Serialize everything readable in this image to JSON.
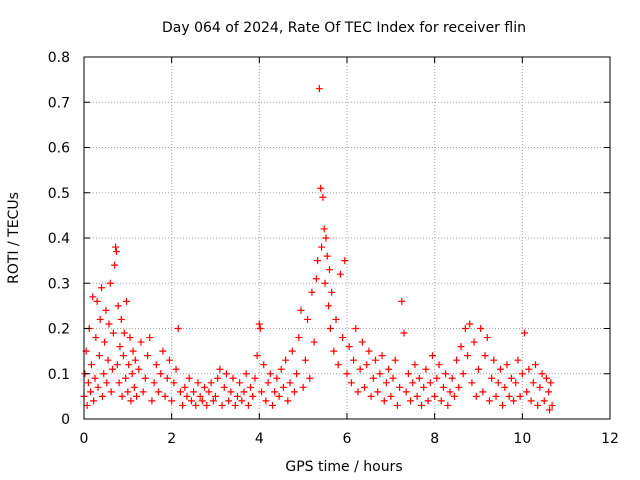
{
  "chart_data": {
    "type": "scatter",
    "title": "Day 064 of 2024, Rate Of TEC Index for receiver flin",
    "xlabel": "GPS time / hours",
    "ylabel": "ROTI / TECUs",
    "xlim": [
      0,
      12
    ],
    "ylim": [
      0,
      0.8
    ],
    "xticks": [
      0,
      2,
      4,
      6,
      8,
      10,
      12
    ],
    "yticks": [
      0,
      0.1,
      0.2,
      0.3,
      0.4,
      0.5,
      0.6,
      0.7,
      0.8
    ],
    "xtick_labels": [
      "0",
      "2",
      "4",
      "6",
      "8",
      "10",
      "12"
    ],
    "ytick_labels": [
      "0",
      "0.1",
      "0.2",
      "0.3",
      "0.4",
      "0.5",
      "0.6",
      "0.7",
      "0.8"
    ],
    "grid": true,
    "marker": "+",
    "color": "#ff0000",
    "series": [
      {
        "name": "ROTI",
        "points": [
          [
            0.0,
            0.05
          ],
          [
            0.02,
            0.1
          ],
          [
            0.05,
            0.15
          ],
          [
            0.07,
            0.03
          ],
          [
            0.1,
            0.08
          ],
          [
            0.12,
            0.2
          ],
          [
            0.15,
            0.06
          ],
          [
            0.17,
            0.12
          ],
          [
            0.2,
            0.27
          ],
          [
            0.22,
            0.04
          ],
          [
            0.25,
            0.09
          ],
          [
            0.27,
            0.18
          ],
          [
            0.3,
            0.26
          ],
          [
            0.32,
            0.07
          ],
          [
            0.35,
            0.14
          ],
          [
            0.37,
            0.22
          ],
          [
            0.4,
            0.29
          ],
          [
            0.42,
            0.05
          ],
          [
            0.45,
            0.1
          ],
          [
            0.47,
            0.17
          ],
          [
            0.5,
            0.24
          ],
          [
            0.52,
            0.08
          ],
          [
            0.55,
            0.13
          ],
          [
            0.57,
            0.21
          ],
          [
            0.6,
            0.3
          ],
          [
            0.62,
            0.06
          ],
          [
            0.65,
            0.11
          ],
          [
            0.67,
            0.19
          ],
          [
            0.7,
            0.34
          ],
          [
            0.72,
            0.38
          ],
          [
            0.74,
            0.37
          ],
          [
            0.76,
            0.12
          ],
          [
            0.78,
            0.25
          ],
          [
            0.8,
            0.08
          ],
          [
            0.82,
            0.16
          ],
          [
            0.85,
            0.22
          ],
          [
            0.87,
            0.05
          ],
          [
            0.9,
            0.14
          ],
          [
            0.92,
            0.19
          ],
          [
            0.95,
            0.09
          ],
          [
            0.97,
            0.26
          ],
          [
            1.0,
            0.06
          ],
          [
            1.02,
            0.12
          ],
          [
            1.05,
            0.18
          ],
          [
            1.07,
            0.04
          ],
          [
            1.1,
            0.1
          ],
          [
            1.12,
            0.15
          ],
          [
            1.15,
            0.07
          ],
          [
            1.17,
            0.13
          ],
          [
            1.2,
            0.05
          ],
          [
            1.25,
            0.11
          ],
          [
            1.3,
            0.17
          ],
          [
            1.35,
            0.06
          ],
          [
            1.4,
            0.09
          ],
          [
            1.45,
            0.14
          ],
          [
            1.5,
            0.18
          ],
          [
            1.55,
            0.04
          ],
          [
            1.6,
            0.08
          ],
          [
            1.65,
            0.12
          ],
          [
            1.7,
            0.06
          ],
          [
            1.75,
            0.1
          ],
          [
            1.8,
            0.15
          ],
          [
            1.85,
            0.05
          ],
          [
            1.9,
            0.09
          ],
          [
            1.95,
            0.13
          ],
          [
            2.0,
            0.04
          ],
          [
            2.05,
            0.08
          ],
          [
            2.1,
            0.11
          ],
          [
            2.15,
            0.2
          ],
          [
            2.2,
            0.06
          ],
          [
            2.25,
            0.03
          ],
          [
            2.3,
            0.07
          ],
          [
            2.35,
            0.05
          ],
          [
            2.4,
            0.09
          ],
          [
            2.45,
            0.04
          ],
          [
            2.5,
            0.06
          ],
          [
            2.55,
            0.03
          ],
          [
            2.6,
            0.08
          ],
          [
            2.65,
            0.05
          ],
          [
            2.7,
            0.04
          ],
          [
            2.75,
            0.07
          ],
          [
            2.8,
            0.03
          ],
          [
            2.85,
            0.06
          ],
          [
            2.9,
            0.08
          ],
          [
            2.95,
            0.04
          ],
          [
            3.0,
            0.05
          ],
          [
            3.05,
            0.09
          ],
          [
            3.1,
            0.11
          ],
          [
            3.15,
            0.03
          ],
          [
            3.2,
            0.07
          ],
          [
            3.25,
            0.1
          ],
          [
            3.3,
            0.04
          ],
          [
            3.35,
            0.06
          ],
          [
            3.4,
            0.09
          ],
          [
            3.45,
            0.03
          ],
          [
            3.5,
            0.05
          ],
          [
            3.55,
            0.08
          ],
          [
            3.6,
            0.04
          ],
          [
            3.65,
            0.06
          ],
          [
            3.7,
            0.1
          ],
          [
            3.75,
            0.03
          ],
          [
            3.8,
            0.07
          ],
          [
            3.85,
            0.05
          ],
          [
            3.9,
            0.09
          ],
          [
            3.95,
            0.14
          ],
          [
            4.0,
            0.21
          ],
          [
            4.02,
            0.2
          ],
          [
            4.05,
            0.06
          ],
          [
            4.1,
            0.12
          ],
          [
            4.15,
            0.04
          ],
          [
            4.2,
            0.08
          ],
          [
            4.25,
            0.1
          ],
          [
            4.3,
            0.03
          ],
          [
            4.35,
            0.06
          ],
          [
            4.4,
            0.09
          ],
          [
            4.45,
            0.05
          ],
          [
            4.5,
            0.11
          ],
          [
            4.55,
            0.07
          ],
          [
            4.6,
            0.13
          ],
          [
            4.65,
            0.04
          ],
          [
            4.7,
            0.08
          ],
          [
            4.75,
            0.15
          ],
          [
            4.8,
            0.06
          ],
          [
            4.85,
            0.1
          ],
          [
            4.9,
            0.18
          ],
          [
            4.95,
            0.24
          ],
          [
            5.0,
            0.07
          ],
          [
            5.05,
            0.13
          ],
          [
            5.1,
            0.22
          ],
          [
            5.15,
            0.09
          ],
          [
            5.2,
            0.28
          ],
          [
            5.25,
            0.17
          ],
          [
            5.3,
            0.31
          ],
          [
            5.33,
            0.35
          ],
          [
            5.37,
            0.73
          ],
          [
            5.4,
            0.51
          ],
          [
            5.42,
            0.38
          ],
          [
            5.45,
            0.49
          ],
          [
            5.48,
            0.42
          ],
          [
            5.5,
            0.3
          ],
          [
            5.52,
            0.4
          ],
          [
            5.55,
            0.36
          ],
          [
            5.58,
            0.25
          ],
          [
            5.6,
            0.33
          ],
          [
            5.62,
            0.2
          ],
          [
            5.65,
            0.28
          ],
          [
            5.7,
            0.15
          ],
          [
            5.75,
            0.22
          ],
          [
            5.8,
            0.12
          ],
          [
            5.85,
            0.32
          ],
          [
            5.9,
            0.18
          ],
          [
            5.95,
            0.35
          ],
          [
            6.0,
            0.1
          ],
          [
            6.05,
            0.16
          ],
          [
            6.1,
            0.08
          ],
          [
            6.15,
            0.13
          ],
          [
            6.2,
            0.2
          ],
          [
            6.25,
            0.06
          ],
          [
            6.3,
            0.11
          ],
          [
            6.35,
            0.17
          ],
          [
            6.4,
            0.07
          ],
          [
            6.45,
            0.12
          ],
          [
            6.5,
            0.15
          ],
          [
            6.55,
            0.05
          ],
          [
            6.6,
            0.09
          ],
          [
            6.65,
            0.13
          ],
          [
            6.7,
            0.06
          ],
          [
            6.75,
            0.1
          ],
          [
            6.8,
            0.14
          ],
          [
            6.85,
            0.04
          ],
          [
            6.9,
            0.08
          ],
          [
            6.95,
            0.11
          ],
          [
            7.0,
            0.05
          ],
          [
            7.05,
            0.09
          ],
          [
            7.1,
            0.13
          ],
          [
            7.15,
            0.03
          ],
          [
            7.2,
            0.07
          ],
          [
            7.25,
            0.26
          ],
          [
            7.3,
            0.19
          ],
          [
            7.35,
            0.06
          ],
          [
            7.4,
            0.1
          ],
          [
            7.45,
            0.04
          ],
          [
            7.5,
            0.08
          ],
          [
            7.55,
            0.12
          ],
          [
            7.6,
            0.05
          ],
          [
            7.65,
            0.09
          ],
          [
            7.7,
            0.03
          ],
          [
            7.75,
            0.07
          ],
          [
            7.8,
            0.11
          ],
          [
            7.85,
            0.04
          ],
          [
            7.9,
            0.08
          ],
          [
            7.95,
            0.14
          ],
          [
            8.0,
            0.05
          ],
          [
            8.05,
            0.09
          ],
          [
            8.1,
            0.12
          ],
          [
            8.15,
            0.04
          ],
          [
            8.2,
            0.07
          ],
          [
            8.25,
            0.1
          ],
          [
            8.3,
            0.03
          ],
          [
            8.35,
            0.06
          ],
          [
            8.4,
            0.09
          ],
          [
            8.45,
            0.05
          ],
          [
            8.5,
            0.13
          ],
          [
            8.55,
            0.07
          ],
          [
            8.6,
            0.16
          ],
          [
            8.65,
            0.1
          ],
          [
            8.7,
            0.2
          ],
          [
            8.75,
            0.14
          ],
          [
            8.8,
            0.21
          ],
          [
            8.85,
            0.08
          ],
          [
            8.9,
            0.17
          ],
          [
            8.95,
            0.05
          ],
          [
            9.0,
            0.11
          ],
          [
            9.05,
            0.2
          ],
          [
            9.1,
            0.06
          ],
          [
            9.15,
            0.14
          ],
          [
            9.2,
            0.18
          ],
          [
            9.25,
            0.04
          ],
          [
            9.3,
            0.09
          ],
          [
            9.35,
            0.13
          ],
          [
            9.4,
            0.05
          ],
          [
            9.45,
            0.08
          ],
          [
            9.5,
            0.11
          ],
          [
            9.55,
            0.03
          ],
          [
            9.6,
            0.07
          ],
          [
            9.65,
            0.12
          ],
          [
            9.7,
            0.05
          ],
          [
            9.75,
            0.09
          ],
          [
            9.8,
            0.04
          ],
          [
            9.85,
            0.08
          ],
          [
            9.9,
            0.13
          ],
          [
            9.95,
            0.05
          ],
          [
            10.0,
            0.1
          ],
          [
            10.05,
            0.19
          ],
          [
            10.1,
            0.06
          ],
          [
            10.15,
            0.11
          ],
          [
            10.2,
            0.04
          ],
          [
            10.25,
            0.08
          ],
          [
            10.3,
            0.12
          ],
          [
            10.35,
            0.03
          ],
          [
            10.4,
            0.07
          ],
          [
            10.45,
            0.1
          ],
          [
            10.5,
            0.04
          ],
          [
            10.55,
            0.09
          ],
          [
            10.6,
            0.06
          ],
          [
            10.62,
            0.02
          ],
          [
            10.65,
            0.08
          ],
          [
            10.68,
            0.03
          ]
        ]
      }
    ]
  }
}
